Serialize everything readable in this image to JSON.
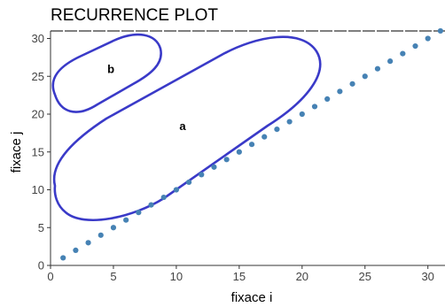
{
  "chart_data": {
    "type": "scatter",
    "title": "RECURRENCE PLOT",
    "xlabel": "fixace i",
    "ylabel": "fixace j",
    "xlim": [
      0,
      31
    ],
    "ylim": [
      0,
      31
    ],
    "x_ticks": [
      0,
      5,
      10,
      15,
      20,
      25,
      30
    ],
    "y_ticks": [
      0,
      5,
      10,
      15,
      20,
      25,
      30
    ],
    "grid": false,
    "point_color": "#4682b4",
    "region_color": "#3a3ac8",
    "points": {
      "x": [
        1,
        2,
        3,
        4,
        5,
        6,
        7,
        8,
        9,
        10,
        11,
        12,
        13,
        14,
        15,
        16,
        17,
        18,
        19,
        20,
        21,
        22,
        23,
        24,
        25,
        26,
        27,
        28,
        29,
        30,
        31
      ],
      "y": [
        1,
        2,
        3,
        4,
        5,
        6,
        7,
        8,
        9,
        10,
        11,
        12,
        13,
        14,
        15,
        16,
        17,
        18,
        19,
        20,
        21,
        22,
        23,
        24,
        25,
        26,
        27,
        28,
        29,
        30,
        31
      ]
    },
    "annotations": [
      {
        "label": "a",
        "x": 10.5,
        "y": 18.5
      },
      {
        "label": "b",
        "x": 4.8,
        "y": 26.0
      }
    ]
  }
}
